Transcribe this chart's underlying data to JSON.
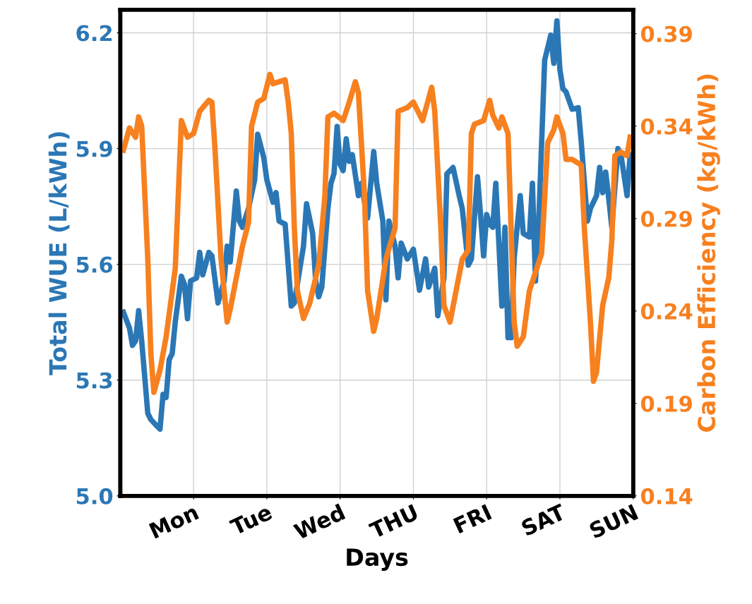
{
  "chart_data": {
    "type": "line",
    "xlabel": "Days",
    "ylabel": "Total WUE (L/kWh)",
    "y2label": "Carbon Efficiency (kg/kWh)",
    "categories": [
      null,
      null,
      null,
      null,
      null,
      null,
      null,
      null,
      null,
      null,
      null,
      null,
      null,
      null,
      null,
      null,
      null,
      null,
      null,
      null,
      null,
      null,
      null,
      null,
      "Mon",
      null,
      null,
      null,
      null,
      null,
      null,
      null,
      null,
      null,
      null,
      null,
      null,
      null,
      null,
      null,
      null,
      null,
      null,
      null,
      null,
      null,
      null,
      null,
      "Tue",
      null,
      null,
      null,
      null,
      null,
      null,
      null,
      null,
      null,
      null,
      null,
      null,
      null,
      null,
      null,
      null,
      null,
      null,
      null,
      null,
      null,
      null,
      null,
      "Wed",
      null,
      null,
      null,
      null,
      null,
      null,
      null,
      null,
      null,
      null,
      null,
      null,
      null,
      null,
      null,
      null,
      null,
      null,
      null,
      null,
      null,
      null,
      null,
      "THU",
      null,
      null,
      null,
      null,
      null,
      null,
      null,
      null,
      null,
      null,
      null,
      null,
      null,
      null,
      null,
      null,
      null,
      null,
      null,
      null,
      null,
      null,
      null,
      "FRI",
      null,
      null,
      null,
      null,
      null,
      null,
      null,
      null,
      null,
      null,
      null,
      null,
      null,
      null,
      null,
      null,
      null,
      null,
      null,
      null,
      null,
      null,
      null,
      "SAT",
      null,
      null,
      null,
      null,
      null,
      null,
      null,
      null,
      null,
      null,
      null,
      null,
      null,
      null,
      null,
      null,
      null,
      null,
      null,
      null,
      null,
      null,
      null,
      "SUN"
    ],
    "ylim": [
      5.0,
      6.26
    ],
    "yticks": [
      {
        "value": 5.0,
        "label": "5.0"
      },
      {
        "value": 5.3,
        "label": "5.3"
      },
      {
        "value": 5.6,
        "label": "5.6"
      },
      {
        "value": 5.9,
        "label": "5.9"
      },
      {
        "value": 6.2,
        "label": "6.2"
      }
    ],
    "y2lim": [
      0.14,
      0.403
    ],
    "y2ticks": [
      {
        "value": 0.14,
        "label": "0.14"
      },
      {
        "value": 0.19,
        "label": "0.19"
      },
      {
        "value": 0.24,
        "label": "0.24"
      },
      {
        "value": 0.29,
        "label": "0.29"
      },
      {
        "value": 0.34,
        "label": "0.34"
      },
      {
        "value": 0.39,
        "label": "0.39"
      }
    ],
    "grid": true,
    "legend": false,
    "marker": "none",
    "line_style": "solid",
    "series": [
      {
        "color": "#2b77b5",
        "values": [
          null,
          5.476,
          null,
          5.435,
          5.39,
          5.402,
          5.48,
          5.402,
          null,
          5.214,
          5.198,
          null,
          5.181,
          5.173,
          5.263,
          5.255,
          5.353,
          5.369,
          5.451,
          null,
          5.569,
          5.549,
          5.459,
          5.557,
          null,
          5.565,
          5.631,
          5.573,
          null,
          5.631,
          5.622,
          null,
          5.5,
          null,
          5.557,
          5.647,
          5.606,
          null,
          5.79,
          5.712,
          5.696,
          null,
          5.745,
          null,
          5.819,
          5.937,
          null,
          5.876,
          5.819,
          null,
          5.761,
          5.786,
          5.712,
          null,
          5.704,
          null,
          5.492,
          5.5,
          null,
          5.598,
          5.647,
          5.757,
          null,
          5.68,
          5.557,
          5.516,
          5.541,
          null,
          5.745,
          5.81,
          5.835,
          5.957,
          5.859,
          5.843,
          5.925,
          5.867,
          5.884,
          null,
          5.778,
          5.81,
          5.761,
          5.72,
          null,
          5.892,
          5.81,
          null,
          5.712,
          5.508,
          5.712,
          null,
          5.647,
          5.565,
          5.655,
          null,
          5.614,
          null,
          5.639,
          null,
          5.533,
          null,
          5.614,
          5.541,
          null,
          5.59,
          5.467,
          null,
          5.565,
          5.835,
          null,
          5.851,
          null,
          5.778,
          5.745,
          null,
          5.598,
          5.614,
          null,
          5.827,
          5.729,
          5.622,
          5.729,
          5.704,
          5.696,
          5.81,
          5.655,
          5.492,
          5.696,
          5.41,
          5.41,
          5.614,
          null,
          5.778,
          5.68,
          null,
          5.671,
          5.81,
          5.557,
          5.696,
          null,
          6.129,
          null,
          6.194,
          6.121,
          6.231,
          6.104,
          6.055,
          6.047,
          null,
          6.002,
          null,
          6.006,
          5.916,
          null,
          5.712,
          5.745,
          null,
          5.778,
          5.851,
          5.786,
          5.839,
          5.77,
          5.696,
          null,
          5.9,
          5.884,
          null,
          5.778,
          5.884,
          null
        ]
      },
      {
        "color": "#f7801f",
        "axis": "y2",
        "values": [
          null,
          0.327,
          null,
          0.339,
          null,
          0.334,
          0.345,
          0.34,
          null,
          0.268,
          0.217,
          0.196,
          null,
          0.208,
          null,
          0.226,
          null,
          null,
          0.263,
          null,
          0.343,
          null,
          0.334,
          null,
          0.336,
          null,
          0.348,
          null,
          null,
          0.354,
          0.353,
          0.328,
          null,
          0.268,
          null,
          0.234,
          0.241,
          null,
          null,
          null,
          0.275,
          null,
          0.288,
          0.34,
          null,
          0.353,
          null,
          0.355,
          null,
          0.368,
          0.363,
          null,
          null,
          null,
          0.365,
          0.353,
          0.336,
          0.285,
          0.251,
          null,
          0.236,
          null,
          0.244,
          null,
          null,
          0.265,
          null,
          0.302,
          0.345,
          null,
          0.347,
          null,
          null,
          0.343,
          null,
          0.353,
          null,
          0.364,
          0.358,
          null,
          0.302,
          0.251,
          null,
          0.229,
          0.236,
          null,
          null,
          0.268,
          null,
          null,
          0.285,
          0.348,
          null,
          null,
          0.35,
          null,
          0.353,
          null,
          null,
          0.343,
          null,
          null,
          0.361,
          0.348,
          null,
          0.285,
          0.243,
          null,
          0.234,
          null,
          0.251,
          null,
          0.268,
          null,
          0.273,
          0.336,
          0.341,
          null,
          null,
          0.343,
          null,
          0.354,
          0.346,
          null,
          0.339,
          0.345,
          null,
          0.336,
          0.285,
          0.234,
          0.221,
          null,
          0.226,
          null,
          0.251,
          null,
          0.261,
          null,
          0.271,
          null,
          0.331,
          null,
          0.338,
          0.345,
          null,
          0.336,
          0.322,
          null,
          0.322,
          null,
          null,
          0.319,
          0.285,
          null,
          0.234,
          0.202,
          0.207,
          null,
          0.243,
          null,
          0.258,
          0.278,
          0.324,
          null,
          0.326,
          null,
          0.324,
          0.334,
          null
        ]
      }
    ]
  }
}
